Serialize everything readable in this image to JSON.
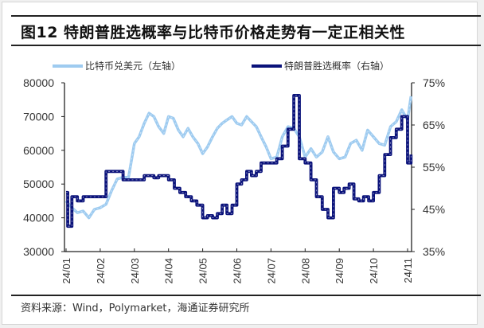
{
  "figure": {
    "title": "图12 特朗普胜选概率与比特币价格走势有一定正相关性",
    "source": "资料来源：Wind，Polymarket，海通证券研究所"
  },
  "legend": [
    {
      "label": "比特币兑美元（左轴）",
      "color": "#9ecbf0"
    },
    {
      "label": "特朗普胜选概率（右轴）",
      "color": "#0a127a"
    }
  ],
  "chart_data": {
    "type": "line",
    "title": "图12 特朗普胜选概率与比特币价格走势有一定正相关性",
    "xlabel": "",
    "ylabel_left": "",
    "ylabel_right": "",
    "x_tick_labels": [
      "24/01",
      "24/02",
      "24/03",
      "24/04",
      "24/05",
      "24/06",
      "24/07",
      "24/08",
      "24/09",
      "24/10",
      "24/11"
    ],
    "left_axis": {
      "ticks": [
        "30000",
        "40000",
        "50000",
        "60000",
        "70000",
        "80000"
      ],
      "ylim": [
        30000,
        80000
      ]
    },
    "right_axis": {
      "ticks": [
        "35%",
        "45%",
        "55%",
        "65%",
        "75%"
      ],
      "ylim": [
        35,
        75
      ]
    },
    "grid": false,
    "legend_position": "top",
    "series": [
      {
        "name": "比特币兑美元（左轴）",
        "axis": "left",
        "color": "#9ecbf0",
        "month_index": [
          0,
          0.17,
          0.33,
          0.5,
          0.67,
          0.83,
          1,
          1.17,
          1.33,
          1.5,
          1.67,
          1.83,
          2,
          2.14,
          2.29,
          2.43,
          2.57,
          2.71,
          2.86,
          3,
          3.14,
          3.29,
          3.43,
          3.57,
          3.71,
          3.86,
          4,
          4.14,
          4.29,
          4.43,
          4.57,
          4.71,
          4.86,
          5,
          5.14,
          5.29,
          5.43,
          5.57,
          5.71,
          5.86,
          6,
          6.17,
          6.33,
          6.5,
          6.67,
          6.83,
          7,
          7.17,
          7.33,
          7.5,
          7.67,
          7.83,
          8,
          8.17,
          8.33,
          8.5,
          8.67,
          8.83,
          9,
          9.17,
          9.33,
          9.5,
          9.67,
          9.83,
          10,
          10.1
        ],
        "values": [
          45000,
          43000,
          41500,
          42000,
          40000,
          42500,
          43000,
          44000,
          48000,
          51500,
          52000,
          52000,
          62000,
          64000,
          68000,
          71000,
          70000,
          67000,
          65000,
          70000,
          69500,
          66000,
          64000,
          66500,
          64000,
          62000,
          59000,
          61000,
          64000,
          66500,
          68000,
          69000,
          70000,
          68000,
          67500,
          70000,
          68500,
          67000,
          64000,
          61000,
          57500,
          58000,
          64000,
          67000,
          66500,
          64000,
          58000,
          60500,
          58000,
          59500,
          64000,
          59500,
          57500,
          58000,
          62000,
          63000,
          60000,
          66000,
          64000,
          62000,
          61500,
          67000,
          68500,
          72000,
          69000,
          76000
        ]
      },
      {
        "name": "特朗普胜选概率（右轴）",
        "axis": "right",
        "color": "#0a127a",
        "month_index": [
          0,
          0.05,
          0.17,
          0.33,
          0.5,
          0.83,
          1,
          1.17,
          1.33,
          1.5,
          1.67,
          1.83,
          2,
          2.14,
          2.29,
          2.43,
          2.57,
          2.71,
          3,
          3.17,
          3.33,
          3.5,
          3.67,
          3.83,
          4,
          4.14,
          4.29,
          4.43,
          4.57,
          4.71,
          4.86,
          5,
          5.14,
          5.29,
          5.43,
          5.57,
          5.71,
          5.86,
          6,
          6.17,
          6.33,
          6.5,
          6.67,
          6.83,
          7,
          7.17,
          7.33,
          7.5,
          7.67,
          7.83,
          8,
          8.14,
          8.29,
          8.43,
          8.57,
          8.71,
          8.86,
          9,
          9.17,
          9.33,
          9.5,
          9.67,
          9.83,
          10,
          10.1
        ],
        "values": [
          49,
          41,
          48,
          47,
          48,
          48,
          48,
          54,
          54,
          54,
          52,
          52,
          52,
          52,
          53,
          53,
          52.5,
          53,
          52,
          50,
          49,
          48,
          47,
          46,
          43,
          43.5,
          43,
          44,
          46,
          44,
          46,
          51,
          52,
          54,
          53,
          54,
          56,
          56,
          56,
          57,
          60,
          64,
          72,
          57,
          56,
          52,
          48,
          45,
          43,
          50,
          49,
          50,
          51,
          47.5,
          47,
          48,
          47,
          49,
          53,
          58,
          62,
          64,
          67,
          56,
          58
        ]
      }
    ]
  }
}
